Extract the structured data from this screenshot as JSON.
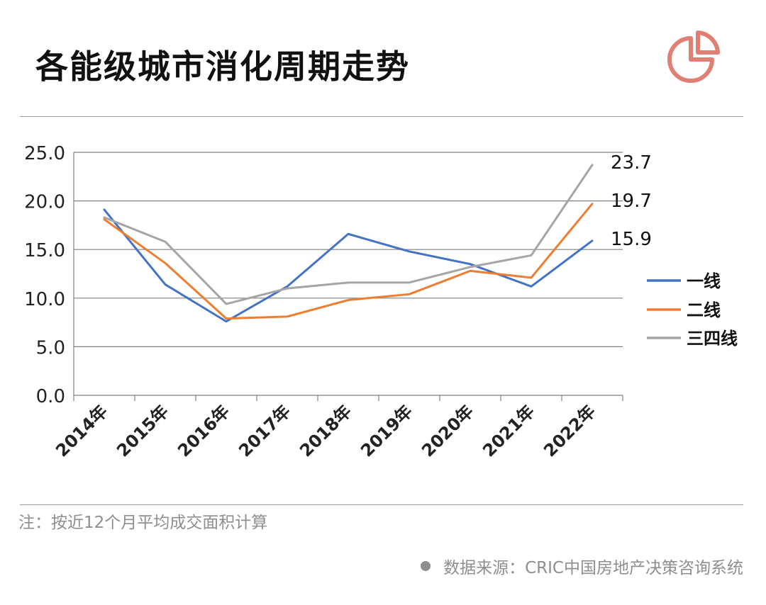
{
  "title": "各能级城市消化周期走势",
  "logo_icon": "pie-chart-icon",
  "colors": {
    "accent": "#e07f73"
  },
  "note": "注：按近12个月平均成交面积计算",
  "source": "数据来源：CRIC中国房地产决策咨询系统",
  "chart_data": {
    "type": "line",
    "title": "",
    "xlabel": "",
    "ylabel": "",
    "categories": [
      "2014年",
      "2015年",
      "2016年",
      "2017年",
      "2018年",
      "2019年",
      "2020年",
      "2021年",
      "2022年"
    ],
    "ylim": [
      0,
      25
    ],
    "yticks": [
      "0.0",
      "5.0",
      "10.0",
      "15.0",
      "20.0",
      "25.0"
    ],
    "grid": true,
    "legend_position": "right",
    "series": [
      {
        "name": "一线",
        "color": "#4472c4",
        "values": [
          19.1,
          11.4,
          7.6,
          11.2,
          16.6,
          14.8,
          13.5,
          11.2,
          15.9
        ]
      },
      {
        "name": "二线",
        "color": "#ed7d31",
        "values": [
          18.1,
          13.6,
          7.9,
          8.1,
          9.8,
          10.4,
          12.8,
          12.1,
          19.7
        ]
      },
      {
        "name": "三四线",
        "color": "#a5a5a5",
        "values": [
          18.3,
          15.8,
          9.4,
          11.0,
          11.6,
          11.6,
          13.2,
          14.4,
          23.7
        ]
      }
    ],
    "end_labels": [
      "23.7",
      "19.7",
      "15.9"
    ]
  }
}
